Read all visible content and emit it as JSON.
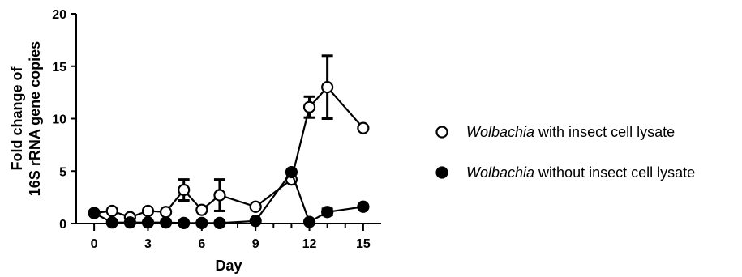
{
  "chart_data": {
    "type": "line",
    "xlabel": "Day",
    "ylabel_lines": [
      "Fold change of",
      "16S rRNA gene copies"
    ],
    "xlim": [
      -1,
      16
    ],
    "ylim": [
      0,
      20
    ],
    "x_ticks": [
      0,
      3,
      6,
      9,
      12,
      15
    ],
    "x_minor_ticks": [
      1,
      2,
      4,
      5,
      7,
      8,
      10,
      11,
      13,
      14
    ],
    "y_ticks": [
      0,
      5,
      10,
      15,
      20
    ],
    "grid": false,
    "legend_position": "right",
    "series": [
      {
        "name_italic": "Wolbachia",
        "name_rest": " with insect cell lysate",
        "marker": "open-circle",
        "x": [
          0,
          1,
          2,
          3,
          4,
          5,
          6,
          7,
          9,
          11,
          12,
          13,
          15
        ],
        "y": [
          1.0,
          1.2,
          0.6,
          1.2,
          1.1,
          3.2,
          1.3,
          2.7,
          1.6,
          4.2,
          11.1,
          13.0,
          9.1
        ],
        "error": [
          0,
          0,
          0,
          0,
          0,
          1.0,
          0,
          1.5,
          0,
          0,
          1.0,
          3.0,
          0
        ]
      },
      {
        "name_italic": "Wolbachia",
        "name_rest": " without insect cell lysate",
        "marker": "filled-circle",
        "x": [
          0,
          1,
          2,
          3,
          4,
          5,
          6,
          7,
          9,
          11,
          12,
          13,
          15
        ],
        "y": [
          1.0,
          0.1,
          0.1,
          0.1,
          0.1,
          0.05,
          0.05,
          0.05,
          0.25,
          4.9,
          0.15,
          1.1,
          1.6
        ],
        "error": [
          0,
          0,
          0,
          0,
          0,
          0,
          0,
          0,
          0,
          0,
          0,
          0.3,
          0
        ]
      }
    ]
  }
}
